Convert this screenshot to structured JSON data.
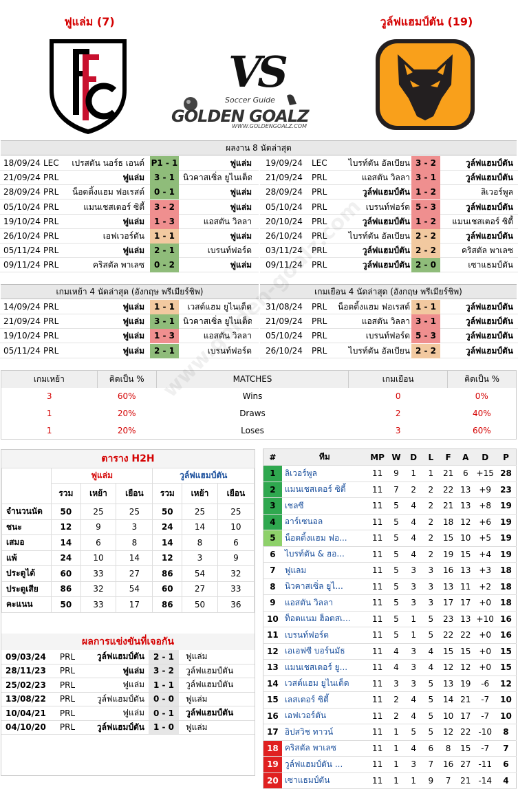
{
  "home": {
    "title": "ฟูแล่ม (7)",
    "color": "#d40000"
  },
  "away": {
    "title": "วูล์ฟแฮมป์ตัน (19)",
    "color": "#d40000"
  },
  "vs": "VS",
  "brand": {
    "small": "Soccer Guide",
    "big": "GOLDEN GOALZ",
    "url": "WWW.GOLDENGOALZ.COM"
  },
  "last8": {
    "header": "ผลงาน 8 นัดล่าสุด",
    "home": [
      {
        "date": "18/09/24",
        "comp": "LEC",
        "team1": "เปรสตัน นอร์ธ เอนด์",
        "score": "P1 - 1",
        "team2": "ฟูแล่ม",
        "res": "w",
        "bold": 2
      },
      {
        "date": "21/09/24",
        "comp": "PRL",
        "team1": "ฟูแล่ม",
        "score": "3 - 1",
        "team2": "นิวคาสเซิ่ล ยูไนเต็ด",
        "res": "w",
        "bold": 1
      },
      {
        "date": "28/09/24",
        "comp": "PRL",
        "team1": "น็อตติ้งแฮม ฟอเรสต์",
        "score": "0 - 1",
        "team2": "ฟูแล่ม",
        "res": "w",
        "bold": 2
      },
      {
        "date": "05/10/24",
        "comp": "PRL",
        "team1": "แมนเชสเตอร์ ซิตี้",
        "score": "3 - 2",
        "team2": "ฟูแล่ม",
        "res": "l",
        "bold": 2
      },
      {
        "date": "19/10/24",
        "comp": "PRL",
        "team1": "ฟูแล่ม",
        "score": "1 - 3",
        "team2": "แอสตัน วิลลา",
        "res": "l",
        "bold": 1
      },
      {
        "date": "26/10/24",
        "comp": "PRL",
        "team1": "เอฟเวอร์ตัน",
        "score": "1 - 1",
        "team2": "ฟูแล่ม",
        "res": "d",
        "bold": 2
      },
      {
        "date": "05/11/24",
        "comp": "PRL",
        "team1": "ฟูแล่ม",
        "score": "2 - 1",
        "team2": "เบรนท์ฟอร์ด",
        "res": "w",
        "bold": 1
      },
      {
        "date": "09/11/24",
        "comp": "PRL",
        "team1": "คริสตัล พาเลซ",
        "score": "0 - 2",
        "team2": "ฟูแล่ม",
        "res": "w",
        "bold": 2
      }
    ],
    "away": [
      {
        "date": "19/09/24",
        "comp": "LEC",
        "team1": "ไบรท์ตัน อัลเบียน",
        "score": "3 - 2",
        "team2": "วูล์ฟแฮมป์ตัน",
        "res": "l",
        "bold": 2
      },
      {
        "date": "21/09/24",
        "comp": "PRL",
        "team1": "แอสตัน วิลลา",
        "score": "3 - 1",
        "team2": "วูล์ฟแฮมป์ตัน",
        "res": "l",
        "bold": 2
      },
      {
        "date": "28/09/24",
        "comp": "PRL",
        "team1": "วูล์ฟแฮมป์ตัน",
        "score": "1 - 2",
        "team2": "ลิเวอร์พูล",
        "res": "l",
        "bold": 1
      },
      {
        "date": "05/10/24",
        "comp": "PRL",
        "team1": "เบรนท์ฟอร์ด",
        "score": "5 - 3",
        "team2": "วูล์ฟแฮมป์ตัน",
        "res": "l",
        "bold": 2
      },
      {
        "date": "20/10/24",
        "comp": "PRL",
        "team1": "วูล์ฟแฮมป์ตัน",
        "score": "1 - 2",
        "team2": "แมนเชสเตอร์ ซิตี้",
        "res": "l",
        "bold": 1
      },
      {
        "date": "26/10/24",
        "comp": "PRL",
        "team1": "ไบรท์ตัน อัลเบียน",
        "score": "2 - 2",
        "team2": "วูล์ฟแฮมป์ตัน",
        "res": "d",
        "bold": 2
      },
      {
        "date": "03/11/24",
        "comp": "PRL",
        "team1": "วูล์ฟแฮมป์ตัน",
        "score": "2 - 2",
        "team2": "คริสตัล พาเลซ",
        "res": "d",
        "bold": 1
      },
      {
        "date": "09/11/24",
        "comp": "PRL",
        "team1": "วูล์ฟแฮมป์ตัน",
        "score": "2 - 0",
        "team2": "เซาแธมป์ตัน",
        "res": "w",
        "bold": 1
      }
    ]
  },
  "last4": {
    "home_header": "เกมเหย้า 4 นัดล่าสุด (อังกฤษ พรีเมียร์ชิพ)",
    "away_header": "เกมเยือน 4 นัดล่าสุด (อังกฤษ พรีเมียร์ชิพ)",
    "home": [
      {
        "date": "14/09/24",
        "comp": "PRL",
        "team1": "ฟูแล่ม",
        "score": "1 - 1",
        "team2": "เวสต์แฮม ยูไนเต็ด",
        "res": "d"
      },
      {
        "date": "21/09/24",
        "comp": "PRL",
        "team1": "ฟูแล่ม",
        "score": "3 - 1",
        "team2": "นิวคาสเซิ่ล ยูไนเต็ด",
        "res": "w"
      },
      {
        "date": "19/10/24",
        "comp": "PRL",
        "team1": "ฟูแล่ม",
        "score": "1 - 3",
        "team2": "แอสตัน วิลลา",
        "res": "l"
      },
      {
        "date": "05/11/24",
        "comp": "PRL",
        "team1": "ฟูแล่ม",
        "score": "2 - 1",
        "team2": "เบรนท์ฟอร์ด",
        "res": "w"
      }
    ],
    "away": [
      {
        "date": "31/08/24",
        "comp": "PRL",
        "team1": "น็อตติ้งแฮม ฟอเรสต์",
        "score": "1 - 1",
        "team2": "วูล์ฟแฮมป์ตัน",
        "res": "d"
      },
      {
        "date": "21/09/24",
        "comp": "PRL",
        "team1": "แอสตัน วิลลา",
        "score": "3 - 1",
        "team2": "วูล์ฟแฮมป์ตัน",
        "res": "l"
      },
      {
        "date": "05/10/24",
        "comp": "PRL",
        "team1": "เบรนท์ฟอร์ด",
        "score": "5 - 3",
        "team2": "วูล์ฟแฮมป์ตัน",
        "res": "l"
      },
      {
        "date": "26/10/24",
        "comp": "PRL",
        "team1": "ไบรท์ตัน อัลเบียน",
        "score": "2 - 2",
        "team2": "วูล์ฟแฮมป์ตัน",
        "res": "d"
      }
    ]
  },
  "summary": {
    "headers": [
      "เกมเหย้า",
      "คิดเป็น %",
      "MATCHES",
      "เกมเยือน",
      "คิดเป็น %"
    ],
    "rows": [
      {
        "home": "3",
        "hp": "60%",
        "label": "Wins",
        "away": "0",
        "ap": "0%"
      },
      {
        "home": "1",
        "hp": "20%",
        "label": "Draws",
        "away": "2",
        "ap": "40%"
      },
      {
        "home": "1",
        "hp": "20%",
        "label": "Loses",
        "away": "3",
        "ap": "60%"
      }
    ]
  },
  "h2h": {
    "title": "ตาราง H2H",
    "home": "ฟูแล่ม",
    "away": "วูล์ฟแฮมป์ตัน",
    "cols": [
      "รวม",
      "เหย้า",
      "เยือน",
      "รวม",
      "เหย้า",
      "เยือน"
    ],
    "rows": [
      {
        "label": "จำนวนนัด",
        "v": [
          "50",
          "25",
          "25",
          "50",
          "25",
          "25"
        ]
      },
      {
        "label": "ชนะ",
        "v": [
          "12",
          "9",
          "3",
          "24",
          "14",
          "10"
        ]
      },
      {
        "label": "เสมอ",
        "v": [
          "14",
          "6",
          "8",
          "14",
          "8",
          "6"
        ]
      },
      {
        "label": "แพ้",
        "v": [
          "24",
          "10",
          "14",
          "12",
          "3",
          "9"
        ]
      },
      {
        "label": "ประตูได้",
        "v": [
          "60",
          "33",
          "27",
          "86",
          "54",
          "32"
        ]
      },
      {
        "label": "ประตูเสีย",
        "v": [
          "86",
          "32",
          "54",
          "60",
          "27",
          "33"
        ]
      },
      {
        "label": "คะแนน",
        "v": [
          "50",
          "33",
          "17",
          "86",
          "50",
          "36"
        ]
      }
    ]
  },
  "meetings": {
    "title": "ผลการแข่งขันที่เจอกัน",
    "rows": [
      {
        "date": "09/03/24",
        "comp": "PRL",
        "team1": "วูล์ฟแฮมป์ตัน",
        "score": "2 - 1",
        "team2": "ฟูแล่ม",
        "bold": 1
      },
      {
        "date": "28/11/23",
        "comp": "PRL",
        "team1": "ฟูแล่ม",
        "score": "3 - 2",
        "team2": "วูล์ฟแฮมป์ตัน",
        "bold": 1
      },
      {
        "date": "25/02/23",
        "comp": "PRL",
        "team1": "ฟูแล่ม",
        "score": "1 - 1",
        "team2": "วูล์ฟแฮมป์ตัน",
        "bold": 0
      },
      {
        "date": "13/08/22",
        "comp": "PRL",
        "team1": "วูล์ฟแฮมป์ตัน",
        "score": "0 - 0",
        "team2": "ฟูแล่ม",
        "bold": 0
      },
      {
        "date": "10/04/21",
        "comp": "PRL",
        "team1": "ฟูแล่ม",
        "score": "0 - 1",
        "team2": "วูล์ฟแฮมป์ตัน",
        "bold": 2
      },
      {
        "date": "04/10/20",
        "comp": "PRL",
        "team1": "วูล์ฟแฮมป์ตัน",
        "score": "1 - 0",
        "team2": "ฟูแล่ม",
        "bold": 1
      }
    ]
  },
  "standings": {
    "headers": [
      "#",
      "ทีม",
      "MP",
      "W",
      "D",
      "L",
      "F",
      "A",
      "D",
      "P"
    ],
    "rows": [
      {
        "pos": "1",
        "team": "ลิเวอร์พูล",
        "mp": "11",
        "w": "9",
        "d": "1",
        "l": "1",
        "f": "21",
        "a": "6",
        "gd": "+15",
        "p": "28",
        "zone": "#2fa84f"
      },
      {
        "pos": "2",
        "team": "แมนเชสเตอร์ ซิตี้",
        "mp": "11",
        "w": "7",
        "d": "2",
        "l": "2",
        "f": "22",
        "a": "13",
        "gd": "+9",
        "p": "23",
        "zone": "#2fa84f"
      },
      {
        "pos": "3",
        "team": "เชลซี",
        "mp": "11",
        "w": "5",
        "d": "4",
        "l": "2",
        "f": "21",
        "a": "13",
        "gd": "+8",
        "p": "19",
        "zone": "#2fa84f"
      },
      {
        "pos": "4",
        "team": "อาร์เซนอล",
        "mp": "11",
        "w": "5",
        "d": "4",
        "l": "2",
        "f": "18",
        "a": "12",
        "gd": "+6",
        "p": "19",
        "zone": "#2fa84f"
      },
      {
        "pos": "5",
        "team": "น็อตติ้งแฮม ฟอ...",
        "mp": "11",
        "w": "5",
        "d": "4",
        "l": "2",
        "f": "15",
        "a": "10",
        "gd": "+5",
        "p": "19",
        "zone": "#8ed16a"
      },
      {
        "pos": "6",
        "team": "ไบรท์ตัน & ฮอ...",
        "mp": "11",
        "w": "5",
        "d": "4",
        "l": "2",
        "f": "19",
        "a": "15",
        "gd": "+4",
        "p": "19",
        "zone": ""
      },
      {
        "pos": "7",
        "team": "ฟูแลม",
        "mp": "11",
        "w": "5",
        "d": "3",
        "l": "3",
        "f": "16",
        "a": "13",
        "gd": "+3",
        "p": "18",
        "zone": ""
      },
      {
        "pos": "8",
        "team": "นิวคาสเซิ่ล ยูไ...",
        "mp": "11",
        "w": "5",
        "d": "3",
        "l": "3",
        "f": "13",
        "a": "11",
        "gd": "+2",
        "p": "18",
        "zone": ""
      },
      {
        "pos": "9",
        "team": "แอสตัน วิลลา",
        "mp": "11",
        "w": "5",
        "d": "3",
        "l": "3",
        "f": "17",
        "a": "17",
        "gd": "+0",
        "p": "18",
        "zone": ""
      },
      {
        "pos": "10",
        "team": "ท็อตแนม ฮ็อตสเ...",
        "mp": "11",
        "w": "5",
        "d": "1",
        "l": "5",
        "f": "23",
        "a": "13",
        "gd": "+10",
        "p": "16",
        "zone": ""
      },
      {
        "pos": "11",
        "team": "เบรนท์ฟอร์ด",
        "mp": "11",
        "w": "5",
        "d": "1",
        "l": "5",
        "f": "22",
        "a": "22",
        "gd": "+0",
        "p": "16",
        "zone": ""
      },
      {
        "pos": "12",
        "team": "เอเอฟซี บอร์นมัธ",
        "mp": "11",
        "w": "4",
        "d": "3",
        "l": "4",
        "f": "15",
        "a": "15",
        "gd": "+0",
        "p": "15",
        "zone": ""
      },
      {
        "pos": "13",
        "team": "แมนเชสเตอร์ ยู...",
        "mp": "11",
        "w": "4",
        "d": "3",
        "l": "4",
        "f": "12",
        "a": "12",
        "gd": "+0",
        "p": "15",
        "zone": ""
      },
      {
        "pos": "14",
        "team": "เวสต์แฮม ยูไนเต็ด",
        "mp": "11",
        "w": "3",
        "d": "3",
        "l": "5",
        "f": "13",
        "a": "19",
        "gd": "-6",
        "p": "12",
        "zone": ""
      },
      {
        "pos": "15",
        "team": "เลสเตอร์ ซิตี้",
        "mp": "11",
        "w": "2",
        "d": "4",
        "l": "5",
        "f": "14",
        "a": "21",
        "gd": "-7",
        "p": "10",
        "zone": ""
      },
      {
        "pos": "16",
        "team": "เอฟเวอร์ตัน",
        "mp": "11",
        "w": "2",
        "d": "4",
        "l": "5",
        "f": "10",
        "a": "17",
        "gd": "-7",
        "p": "10",
        "zone": ""
      },
      {
        "pos": "17",
        "team": "อิปสวิช ทาวน์",
        "mp": "11",
        "w": "1",
        "d": "5",
        "l": "5",
        "f": "12",
        "a": "22",
        "gd": "-10",
        "p": "8",
        "zone": ""
      },
      {
        "pos": "18",
        "team": "คริสตัล พาเลซ",
        "mp": "11",
        "w": "1",
        "d": "4",
        "l": "6",
        "f": "8",
        "a": "15",
        "gd": "-7",
        "p": "7",
        "zone": "#e02020"
      },
      {
        "pos": "19",
        "team": "วูล์ฟแฮมป์ตัน ...",
        "mp": "11",
        "w": "1",
        "d": "3",
        "l": "7",
        "f": "16",
        "a": "27",
        "gd": "-11",
        "p": "6",
        "zone": "#e02020"
      },
      {
        "pos": "20",
        "team": "เซาแธมป์ตัน",
        "mp": "11",
        "w": "1",
        "d": "1",
        "l": "9",
        "f": "7",
        "a": "21",
        "gd": "-14",
        "p": "4",
        "zone": "#e02020"
      }
    ]
  }
}
